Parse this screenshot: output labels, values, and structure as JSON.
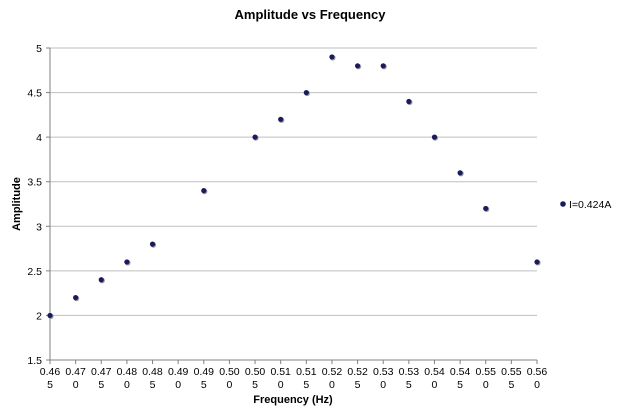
{
  "chart_data": {
    "type": "scatter",
    "title": "Amplitude vs Frequency",
    "xlabel": "Frequency (Hz)",
    "ylabel": "Amplitude",
    "xlim": [
      0.465,
      0.56
    ],
    "ylim": [
      1.5,
      5
    ],
    "x_tick_values": [
      0.465,
      0.47,
      0.475,
      0.48,
      0.485,
      0.49,
      0.495,
      0.5,
      0.505,
      0.51,
      0.515,
      0.52,
      0.525,
      0.53,
      0.535,
      0.54,
      0.545,
      0.55,
      0.555,
      0.56
    ],
    "x_tick_labels": [
      [
        "0.46",
        "5"
      ],
      [
        "0.47",
        "0"
      ],
      [
        "0.47",
        "5"
      ],
      [
        "0.48",
        "0"
      ],
      [
        "0.48",
        "5"
      ],
      [
        "0.49",
        "0"
      ],
      [
        "0.49",
        "5"
      ],
      [
        "0.50",
        "0"
      ],
      [
        "0.50",
        "5"
      ],
      [
        "0.51",
        "0"
      ],
      [
        "0.51",
        "5"
      ],
      [
        "0.52",
        "0"
      ],
      [
        "0.52",
        "5"
      ],
      [
        "0.53",
        "0"
      ],
      [
        "0.53",
        "5"
      ],
      [
        "0.54",
        "0"
      ],
      [
        "0.54",
        "5"
      ],
      [
        "0.55",
        "0"
      ],
      [
        "0.55",
        "5"
      ],
      [
        "0.56",
        "0"
      ]
    ],
    "y_ticks": [
      {
        "value": 1.5,
        "label": "1.5"
      },
      {
        "value": 2,
        "label": "2"
      },
      {
        "value": 2.5,
        "label": "2.5"
      },
      {
        "value": 3,
        "label": "3"
      },
      {
        "value": 3.5,
        "label": "3.5"
      },
      {
        "value": 4,
        "label": "4"
      },
      {
        "value": 4.5,
        "label": "4.5"
      },
      {
        "value": 5,
        "label": "5"
      }
    ],
    "grid": {
      "horizontal": true,
      "vertical": false
    },
    "legend_position": "right",
    "series": [
      {
        "name": "I=0.424A",
        "color": "#1a1a5e",
        "points": [
          {
            "x": 0.465,
            "y": 2.0
          },
          {
            "x": 0.47,
            "y": 2.2
          },
          {
            "x": 0.475,
            "y": 2.4
          },
          {
            "x": 0.48,
            "y": 2.6
          },
          {
            "x": 0.485,
            "y": 2.8
          },
          {
            "x": 0.495,
            "y": 3.4
          },
          {
            "x": 0.505,
            "y": 4.0
          },
          {
            "x": 0.51,
            "y": 4.2
          },
          {
            "x": 0.515,
            "y": 4.5
          },
          {
            "x": 0.52,
            "y": 4.9
          },
          {
            "x": 0.525,
            "y": 4.8
          },
          {
            "x": 0.53,
            "y": 4.8
          },
          {
            "x": 0.535,
            "y": 4.4
          },
          {
            "x": 0.54,
            "y": 4.0
          },
          {
            "x": 0.545,
            "y": 3.6
          },
          {
            "x": 0.55,
            "y": 3.2
          },
          {
            "x": 0.56,
            "y": 2.6
          }
        ]
      }
    ]
  },
  "colors": {
    "gridline": "#bfbfbf",
    "axis": "#808080",
    "marker_fill": "#1a1a5e",
    "marker_shadow": "#9a9a9a"
  }
}
